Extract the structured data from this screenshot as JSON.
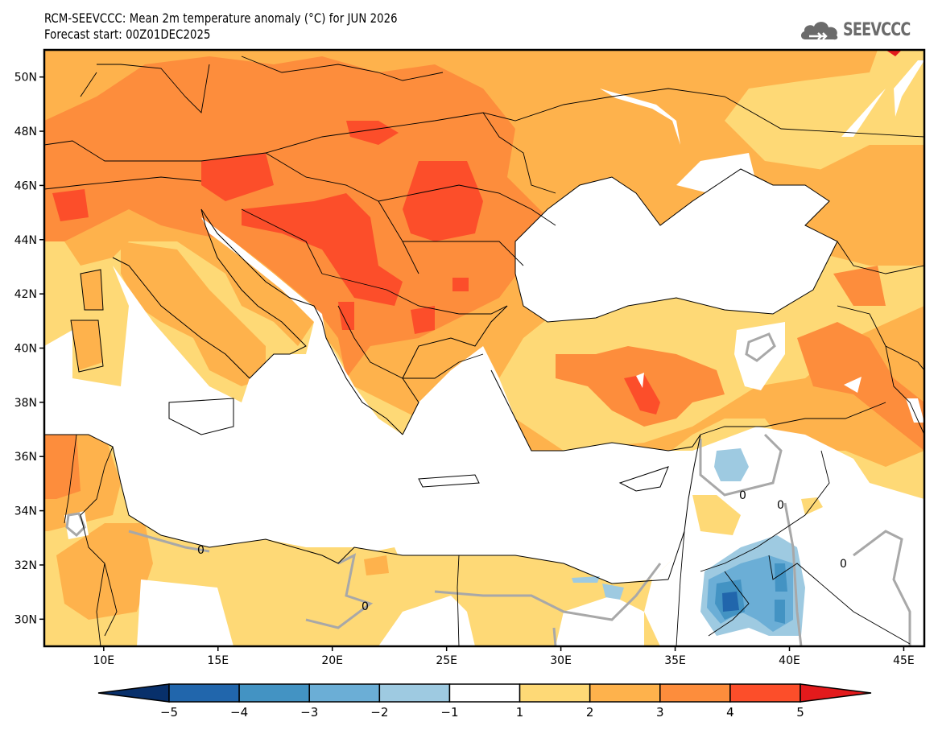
{
  "header": {
    "title_line1": "RCM-SEEVCCC: Mean 2m temperature anomaly (°C) for JUN 2026",
    "title_line2": "Forecast start: 00Z01DEC2025",
    "logo_text": "SEEVCCC",
    "logo_icon": "cloud-icon"
  },
  "map": {
    "variable": "Mean 2m temperature anomaly",
    "unit": "°C",
    "valid_month": "JUN 2026",
    "forecast_start": "00Z01DEC2025",
    "lon_range": [
      7.4,
      45.9
    ],
    "lat_range": [
      29.0,
      51.0
    ],
    "lat_ticks": [
      "30N",
      "32N",
      "34N",
      "36N",
      "38N",
      "40N",
      "42N",
      "44N",
      "46N",
      "48N",
      "50N"
    ],
    "lat_tick_values": [
      30,
      32,
      34,
      36,
      38,
      40,
      42,
      44,
      46,
      48,
      50
    ],
    "lon_ticks": [
      "10E",
      "15E",
      "20E",
      "25E",
      "30E",
      "35E",
      "40E",
      "45E"
    ],
    "lon_tick_values": [
      10,
      15,
      20,
      25,
      30,
      35,
      40,
      45
    ],
    "contour_label": "0",
    "contour_color": "#a8a8a8",
    "regions": [
      {
        "name": "central-europe-band",
        "level": 3
      },
      {
        "name": "balkans-core",
        "level": 4
      },
      {
        "name": "romania-core",
        "level": 4
      },
      {
        "name": "italy",
        "level": 2
      },
      {
        "name": "ukraine-russia",
        "level": 2
      },
      {
        "name": "anatolia",
        "level": 2
      },
      {
        "name": "central-anatolia-core",
        "level": 3
      },
      {
        "name": "north-africa",
        "level": 1
      },
      {
        "name": "jordan-saudi-cold",
        "level": -2
      },
      {
        "name": "jordan-saudi-core",
        "level": -4
      },
      {
        "name": "syria-cold",
        "level": -2
      }
    ]
  },
  "colorbar": {
    "labels": [
      "-5",
      "-4",
      "-3",
      "-2",
      "-1",
      "1",
      "2",
      "3",
      "4",
      "5"
    ],
    "bins": [
      {
        "range": "< -5",
        "color": "#08306b"
      },
      {
        "range": "-5 to -4",
        "color": "#2166ac"
      },
      {
        "range": "-4 to -3",
        "color": "#4393c3"
      },
      {
        "range": "-3 to -2",
        "color": "#6baed6"
      },
      {
        "range": "-2 to -1",
        "color": "#9ecae1"
      },
      {
        "range": "-1 to 1",
        "color": "#ffffff"
      },
      {
        "range": "1 to 2",
        "color": "#fed976"
      },
      {
        "range": "2 to 3",
        "color": "#feb24c"
      },
      {
        "range": "3 to 4",
        "color": "#fd8d3c"
      },
      {
        "range": "4 to 5",
        "color": "#fc4e2a"
      },
      {
        "range": "> 5",
        "color": "#e31a1c"
      }
    ]
  }
}
